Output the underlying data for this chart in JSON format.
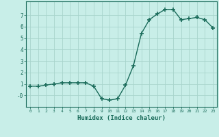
{
  "x": [
    0,
    1,
    2,
    3,
    4,
    5,
    6,
    7,
    8,
    9,
    10,
    11,
    12,
    13,
    14,
    15,
    16,
    17,
    18,
    19,
    20,
    21,
    22,
    23
  ],
  "y": [
    0.8,
    0.8,
    0.9,
    1.0,
    1.1,
    1.1,
    1.1,
    1.1,
    0.8,
    -0.3,
    -0.4,
    -0.3,
    0.9,
    2.6,
    5.4,
    6.6,
    7.1,
    7.5,
    7.5,
    6.6,
    6.7,
    6.8,
    6.6,
    5.9
  ],
  "title": "",
  "xlabel": "Humidex (Indice chaleur)",
  "ylabel": "",
  "xlim": [
    -0.5,
    23.5
  ],
  "ylim": [
    -1.0,
    8.2
  ],
  "yticks": [
    0,
    1,
    2,
    3,
    4,
    5,
    6,
    7
  ],
  "ytick_labels": [
    "-0",
    "1",
    "2",
    "3",
    "4",
    "5",
    "6",
    "7"
  ],
  "xticks": [
    0,
    1,
    2,
    3,
    4,
    5,
    6,
    7,
    8,
    9,
    10,
    11,
    12,
    13,
    14,
    15,
    16,
    17,
    18,
    19,
    20,
    21,
    22,
    23
  ],
  "bg_color": "#c8eee8",
  "grid_color": "#a8d4cc",
  "line_color": "#1a6b5a",
  "marker_color": "#1a6b5a",
  "axis_color": "#1a6b5a",
  "tick_label_color": "#1a6b5a",
  "xlabel_color": "#1a6b5a",
  "line_width": 1.0,
  "marker_size": 4
}
